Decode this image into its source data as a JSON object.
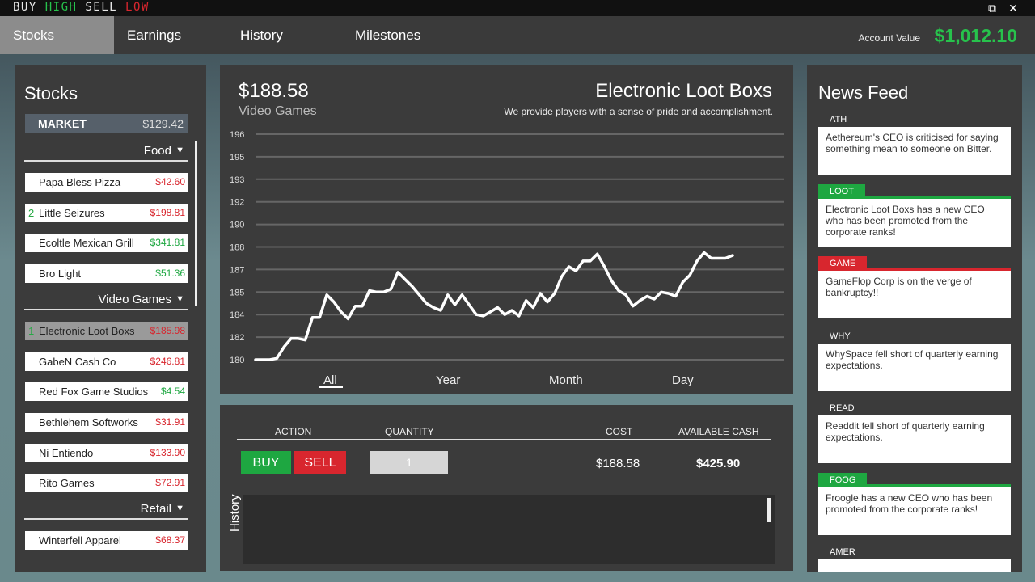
{
  "window": {
    "logo": [
      {
        "text": "BUY ",
        "color": "w"
      },
      {
        "text": "HIGH ",
        "color": "g"
      },
      {
        "text": "SELL ",
        "color": "w"
      },
      {
        "text": "LOW",
        "color": "r"
      }
    ]
  },
  "nav": {
    "tabs": [
      "Stocks",
      "Earnings",
      "History",
      "Milestones"
    ],
    "account_label": "Account Value",
    "account_value": "$1,012.10"
  },
  "stocks": {
    "title": "Stocks",
    "market": {
      "label": "MARKET",
      "value": "$129.42"
    },
    "categories": [
      {
        "name": "Food",
        "items": [
          {
            "num": "",
            "name": "Papa Bless Pizza",
            "price": "$42.60",
            "trend": "down"
          },
          {
            "num": "2",
            "name": "Little Seizures",
            "price": "$198.81",
            "trend": "down"
          },
          {
            "num": "",
            "name": "Ecoltle Mexican Grill",
            "price": "$341.81",
            "trend": "up"
          },
          {
            "num": "",
            "name": "Bro Light",
            "price": "$51.36",
            "trend": "up"
          }
        ]
      },
      {
        "name": "Video Games",
        "items": [
          {
            "num": "1",
            "name": "Electronic Loot Boxs",
            "price": "$185.98",
            "trend": "down",
            "selected": true
          },
          {
            "num": "",
            "name": "GabeN Cash Co",
            "price": "$246.81",
            "trend": "down"
          },
          {
            "num": "",
            "name": "Red Fox Game Studios",
            "price": "$4.54",
            "trend": "up"
          },
          {
            "num": "",
            "name": "Bethlehem Softworks",
            "price": "$31.91",
            "trend": "down"
          },
          {
            "num": "",
            "name": "Ni Entiendo",
            "price": "$133.90",
            "trend": "down"
          },
          {
            "num": "",
            "name": "Rito Games",
            "price": "$72.91",
            "trend": "down"
          }
        ]
      },
      {
        "name": "Retail",
        "items": [
          {
            "num": "",
            "name": "Winterfell Apparel",
            "price": "$68.37",
            "trend": "down"
          }
        ]
      }
    ]
  },
  "detail": {
    "price": "$188.58",
    "category": "Video Games",
    "name": "Electronic Loot Boxs",
    "description": "We provide players with a sense of pride and accomplishment.",
    "range_tabs": [
      "All",
      "Year",
      "Month",
      "Day"
    ],
    "active_range": "All"
  },
  "chart_data": {
    "type": "line",
    "y_ticks": [
      "196",
      "195",
      "193",
      "192",
      "190",
      "188",
      "187",
      "185",
      "184",
      "182",
      "180"
    ],
    "ylim": [
      180,
      196
    ],
    "grid": true,
    "values": [
      180,
      180,
      180,
      180.1,
      180.9,
      181.5,
      181.5,
      181.4,
      183,
      183,
      184.6,
      184.1,
      183.4,
      182.9,
      183.8,
      183.8,
      184.9,
      184.8,
      184.8,
      185,
      186.2,
      185.7,
      185.2,
      184.6,
      184,
      183.7,
      183.5,
      184.6,
      183.9,
      184.6,
      183.9,
      183.2,
      183.1,
      183.4,
      183.7,
      183.2,
      183.5,
      183.1,
      184.2,
      183.7,
      184.7,
      184.1,
      184.7,
      185.9,
      186.6,
      186.3,
      187,
      187,
      187.5,
      186.6,
      185.6,
      184.9,
      184.6,
      183.8,
      184.2,
      184.5,
      184.3,
      184.8,
      184.7,
      184.5,
      185.5,
      186,
      187,
      187.6,
      187.2,
      187.2,
      187.2,
      187.4
    ]
  },
  "trade": {
    "headers": {
      "action": "ACTION",
      "quantity": "QUANTITY",
      "cost": "COST",
      "cash": "AVAILABLE CASH"
    },
    "buy_label": "BUY",
    "sell_label": "SELL",
    "quantity": "1",
    "cost": "$188.58",
    "available_cash": "$425.90",
    "history_label": "History"
  },
  "news": {
    "title": "News Feed",
    "items": [
      {
        "tag": "ATH",
        "style": "plain",
        "text": "Aethereum's CEO is criticised for saying something mean to someone on Bitter."
      },
      {
        "tag": "LOOT",
        "style": "good",
        "text": "Electronic Loot Boxs has a new CEO who has been promoted from the corporate ranks!"
      },
      {
        "tag": "GAME",
        "style": "bad",
        "text": "GameFlop Corp is on the verge of bankruptcy!!"
      },
      {
        "tag": "WHY",
        "style": "plain",
        "text": "WhySpace fell short of quarterly earning expectations."
      },
      {
        "tag": "READ",
        "style": "plain",
        "text": "Readdit fell short of quarterly earning expectations."
      },
      {
        "tag": "FOOG",
        "style": "good",
        "text": "Froogle has a new CEO who has been promoted from the corporate ranks!"
      },
      {
        "tag": "AMER",
        "style": "plain",
        "text": ""
      }
    ]
  },
  "colors": {
    "up": "#1ea741",
    "down": "#d8262e",
    "good": "#1ea741",
    "bad": "#d8262e",
    "panel": "#3b3b3b"
  }
}
